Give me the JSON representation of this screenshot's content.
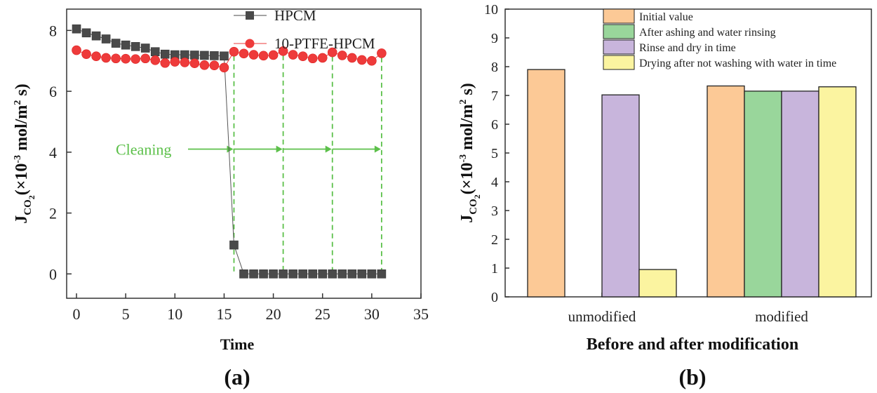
{
  "chart_data": [
    {
      "type": "line",
      "panel_label": "(a)",
      "xlabel": "Time",
      "ylabel": {
        "main": "J",
        "sub": "CO",
        "sub2": "2",
        "rest1": "(×10",
        "exp": "-3",
        "rest2": " mol/m",
        "sup2": "2",
        "rest3": " s)"
      },
      "xlim": [
        -1,
        35
      ],
      "ylim": [
        -0.8,
        8.7
      ],
      "xticks": [
        0,
        5,
        10,
        15,
        20,
        25,
        30,
        35
      ],
      "yticks": [
        0,
        2,
        4,
        6,
        8
      ],
      "legend_position": "top-right",
      "series": [
        {
          "name": "HPCM",
          "marker": "square",
          "color": "#4a4a4a",
          "x": [
            0,
            1,
            2,
            3,
            4,
            5,
            6,
            7,
            8,
            9,
            10,
            11,
            12,
            13,
            14,
            15,
            16,
            17,
            18,
            19,
            20,
            21,
            22,
            23,
            24,
            25,
            26,
            27,
            28,
            29,
            30,
            31
          ],
          "y": [
            8.05,
            7.92,
            7.82,
            7.72,
            7.58,
            7.52,
            7.47,
            7.42,
            7.3,
            7.22,
            7.2,
            7.2,
            7.19,
            7.18,
            7.17,
            7.16,
            0.95,
            0,
            0,
            0,
            0,
            0,
            0,
            0,
            0,
            0,
            0,
            0,
            0,
            0,
            0,
            0
          ]
        },
        {
          "name": "10-PTFE-HPCM",
          "marker": "circle",
          "color": "#ee3b3b",
          "x": [
            0,
            1,
            2,
            3,
            4,
            5,
            6,
            7,
            8,
            9,
            10,
            11,
            12,
            13,
            14,
            15,
            16,
            17,
            18,
            19,
            20,
            21,
            22,
            23,
            24,
            25,
            26,
            27,
            28,
            29,
            30,
            31
          ],
          "y": [
            7.35,
            7.22,
            7.15,
            7.1,
            7.08,
            7.07,
            7.06,
            7.08,
            7.02,
            6.93,
            6.97,
            6.95,
            6.92,
            6.86,
            6.85,
            6.78,
            7.3,
            7.24,
            7.2,
            7.17,
            7.19,
            7.32,
            7.2,
            7.15,
            7.08,
            7.1,
            7.28,
            7.18,
            7.1,
            7.03,
            7.0,
            7.25
          ]
        }
      ],
      "cleaning": {
        "label": "Cleaning",
        "y": 4.1,
        "x_start": 3.5,
        "marks": [
          16,
          21,
          26,
          31
        ],
        "color": "#5cc04a"
      }
    },
    {
      "type": "bar",
      "panel_label": "(b)",
      "xlabel": "Before and after modification",
      "ylabel": {
        "main": "J",
        "sub": "CO",
        "sub2": "2",
        "rest1": "(×10",
        "exp": "-3",
        "rest2": " mol/m",
        "sup2": "2",
        "rest3": " s)"
      },
      "categories": [
        "unmodified",
        "modified"
      ],
      "ylim": [
        0,
        10
      ],
      "yticks": [
        0,
        1,
        2,
        3,
        4,
        5,
        6,
        7,
        8,
        9,
        10
      ],
      "legend_position": "top-right",
      "series": [
        {
          "name": "Initial value",
          "color": "#fcc996",
          "values": [
            7.9,
            7.33
          ]
        },
        {
          "name": "After ashing and water rinsing",
          "color": "#99d69b",
          "values": [
            null,
            7.15
          ]
        },
        {
          "name": "Rinse and dry in time",
          "color": "#c8b5dc",
          "values": [
            7.02,
            7.15
          ]
        },
        {
          "name": "Drying after not washing with water in time",
          "color": "#fbf4a0",
          "values": [
            0.95,
            7.3
          ]
        }
      ]
    }
  ]
}
